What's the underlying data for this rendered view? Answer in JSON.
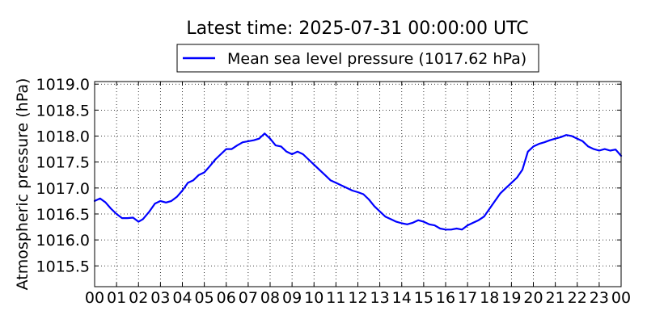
{
  "chart_data": {
    "type": "line",
    "title": "Latest time: 2025-07-31 00:00:00 UTC",
    "ylabel": "Atmospheric pressure (hPa)",
    "xlabel": "",
    "x_ticks": [
      "00",
      "01",
      "02",
      "03",
      "04",
      "05",
      "06",
      "07",
      "08",
      "09",
      "10",
      "11",
      "12",
      "13",
      "14",
      "15",
      "16",
      "17",
      "18",
      "19",
      "20",
      "21",
      "22",
      "23",
      "00"
    ],
    "y_ticks": [
      "1015.5",
      "1016.0",
      "1016.5",
      "1017.0",
      "1017.5",
      "1018.0",
      "1018.5",
      "1019.0"
    ],
    "xlim": [
      0,
      24
    ],
    "ylim": [
      1015.1,
      1019.05
    ],
    "grid": true,
    "legend_position": "top-center",
    "series": [
      {
        "name": "Mean sea level pressure (1017.62 hPa)",
        "color": "#0000ff",
        "x": [
          0,
          0.25,
          0.5,
          0.75,
          1.0,
          1.25,
          1.5,
          1.75,
          2.0,
          2.2,
          2.5,
          2.75,
          3.0,
          3.25,
          3.5,
          3.75,
          4.0,
          4.25,
          4.5,
          4.75,
          5.0,
          5.25,
          5.5,
          5.75,
          6.0,
          6.25,
          6.5,
          6.75,
          7.0,
          7.25,
          7.5,
          7.75,
          8.0,
          8.25,
          8.5,
          8.75,
          9.0,
          9.25,
          9.5,
          9.75,
          10.0,
          10.25,
          10.5,
          10.75,
          11.0,
          11.25,
          11.5,
          11.75,
          12.0,
          12.25,
          12.5,
          12.75,
          13.0,
          13.25,
          13.5,
          13.75,
          14.0,
          14.25,
          14.5,
          14.75,
          15.0,
          15.25,
          15.5,
          15.75,
          16.0,
          16.25,
          16.5,
          16.75,
          17.0,
          17.25,
          17.5,
          17.75,
          18.0,
          18.25,
          18.5,
          18.75,
          19.0,
          19.25,
          19.5,
          19.75,
          20.0,
          20.25,
          20.5,
          20.75,
          21.0,
          21.25,
          21.5,
          21.75,
          22.0,
          22.25,
          22.5,
          22.75,
          23.0,
          23.25,
          23.5,
          23.75,
          24.0
        ],
        "y": [
          1016.75,
          1016.8,
          1016.72,
          1016.6,
          1016.5,
          1016.42,
          1016.42,
          1016.43,
          1016.35,
          1016.4,
          1016.55,
          1016.7,
          1016.75,
          1016.72,
          1016.75,
          1016.83,
          1016.95,
          1017.1,
          1017.15,
          1017.25,
          1017.3,
          1017.42,
          1017.55,
          1017.65,
          1017.75,
          1017.75,
          1017.82,
          1017.88,
          1017.9,
          1017.92,
          1017.95,
          1018.05,
          1017.95,
          1017.82,
          1017.8,
          1017.7,
          1017.65,
          1017.7,
          1017.65,
          1017.55,
          1017.45,
          1017.35,
          1017.25,
          1017.15,
          1017.1,
          1017.05,
          1017.0,
          1016.95,
          1016.92,
          1016.88,
          1016.78,
          1016.65,
          1016.55,
          1016.45,
          1016.4,
          1016.35,
          1016.32,
          1016.3,
          1016.33,
          1016.38,
          1016.35,
          1016.3,
          1016.28,
          1016.22,
          1016.2,
          1016.2,
          1016.22,
          1016.2,
          1016.28,
          1016.33,
          1016.38,
          1016.45,
          1016.6,
          1016.75,
          1016.9,
          1017.0,
          1017.1,
          1017.2,
          1017.35,
          1017.7,
          1017.8,
          1017.85,
          1017.88,
          1017.92,
          1017.95,
          1017.98,
          1018.02,
          1018.0,
          1017.95,
          1017.9,
          1017.8,
          1017.75,
          1017.72,
          1017.75,
          1017.72,
          1017.74,
          1017.62
        ]
      }
    ]
  }
}
